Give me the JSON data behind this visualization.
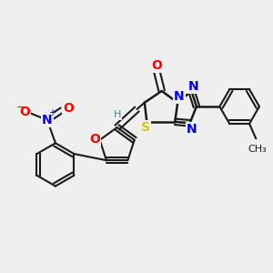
{
  "background_color": "#efefef",
  "bond_color": "#1a1a1a",
  "atom_colors": {
    "O": "#ff0000",
    "N": "#0000ee",
    "S": "#cccc00",
    "H": "#4a8a8a",
    "NO2_N": "#0000ee",
    "NO2_O": "#ff0000"
  },
  "font_size": 10,
  "font_size_small": 8,
  "fig_size": [
    3.0,
    3.0
  ],
  "dpi": 100
}
